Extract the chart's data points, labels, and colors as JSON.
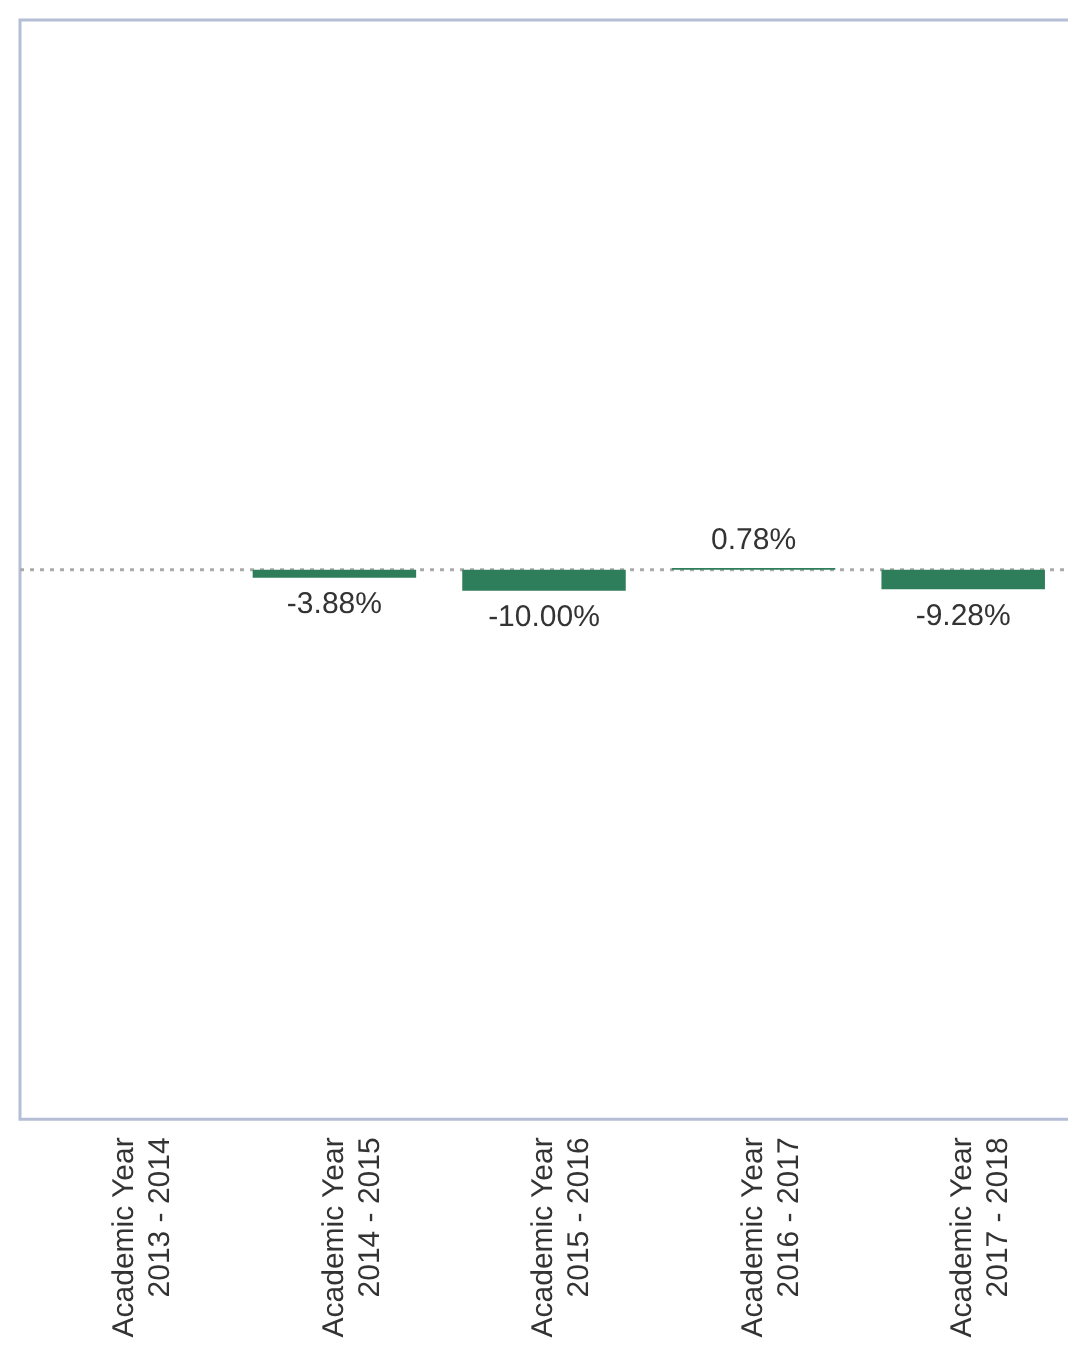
{
  "chart_data": {
    "type": "bar",
    "categories": [
      "Academic Year\n2013 - 2014",
      "Academic Year\n2014 - 2015",
      "Academic Year\n2015 - 2016",
      "Academic Year\n2016 - 2017",
      "Academic Year\n2017 - 2018"
    ],
    "values": [
      null,
      -3.88,
      -10.0,
      0.78,
      -9.28
    ],
    "value_labels": [
      null,
      "-3.88%",
      "-10.00%",
      "0.78%",
      "-9.28%"
    ],
    "color": "#2e7d5b"
  }
}
